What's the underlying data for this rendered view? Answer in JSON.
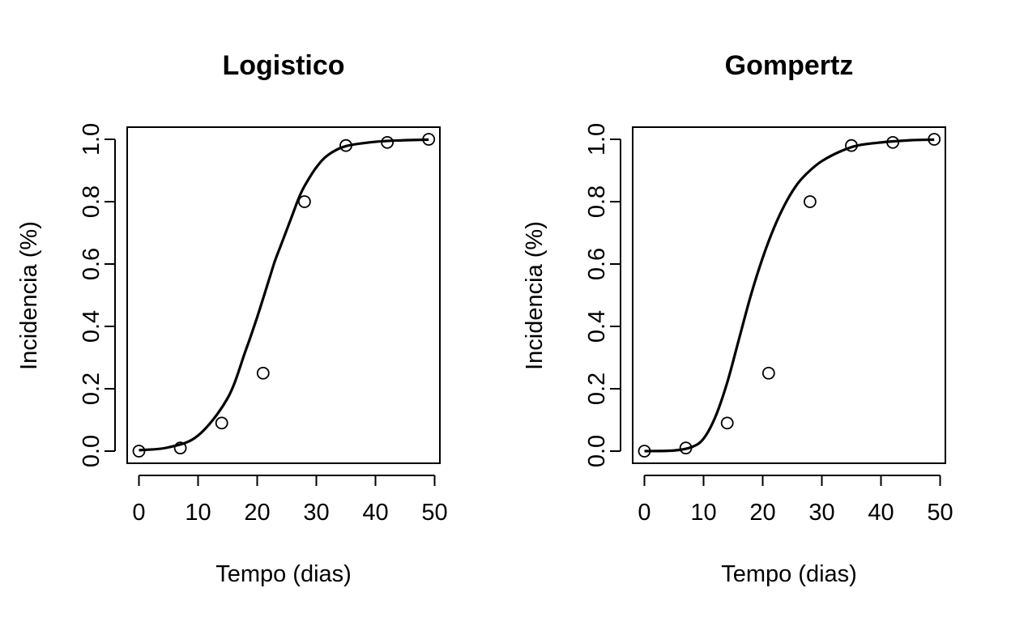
{
  "chart_data": [
    {
      "type": "scatter",
      "title": "Logistico",
      "xlabel": "Tempo (dias)",
      "ylabel": "Incidencia (%)",
      "xlim": [
        0,
        50
      ],
      "ylim": [
        0,
        1
      ],
      "x_ticks": [
        "0",
        "10",
        "20",
        "30",
        "40",
        "50"
      ],
      "y_ticks": [
        "0.0",
        "0.2",
        "0.4",
        "0.6",
        "0.8",
        "1.0"
      ],
      "grid": false,
      "legend": "none",
      "points": {
        "x": [
          0,
          7,
          14,
          21,
          28,
          35,
          42,
          49
        ],
        "y": [
          0.0,
          0.01,
          0.09,
          0.25,
          0.8,
          0.98,
          0.99,
          1.0
        ]
      },
      "fitted_curve": {
        "model": "logistic",
        "x": [
          0,
          5,
          10,
          15,
          18,
          20,
          22,
          23,
          24,
          25,
          26,
          27,
          28,
          30,
          32,
          35,
          40,
          45,
          49
        ],
        "y": [
          0.003,
          0.012,
          0.05,
          0.17,
          0.32,
          0.43,
          0.55,
          0.61,
          0.66,
          0.71,
          0.76,
          0.81,
          0.85,
          0.91,
          0.95,
          0.978,
          0.992,
          0.997,
          0.999
        ]
      }
    },
    {
      "type": "scatter",
      "title": "Gompertz",
      "xlabel": "Tempo (dias)",
      "ylabel": "Incidencia (%)",
      "xlim": [
        0,
        50
      ],
      "ylim": [
        0,
        1
      ],
      "x_ticks": [
        "0",
        "10",
        "20",
        "30",
        "40",
        "50"
      ],
      "y_ticks": [
        "0.0",
        "0.2",
        "0.4",
        "0.6",
        "0.8",
        "1.0"
      ],
      "grid": false,
      "legend": "none",
      "points": {
        "x": [
          0,
          7,
          14,
          21,
          28,
          35,
          42,
          49
        ],
        "y": [
          0.0,
          0.01,
          0.09,
          0.25,
          0.8,
          0.98,
          0.99,
          1.0
        ]
      },
      "fitted_curve": {
        "model": "gompertz",
        "x": [
          0,
          5,
          8,
          10,
          12,
          14,
          16,
          18,
          20,
          22,
          24,
          26,
          28,
          30,
          33,
          36,
          40,
          45,
          49
        ],
        "y": [
          0.0,
          0.002,
          0.013,
          0.04,
          0.11,
          0.22,
          0.36,
          0.5,
          0.62,
          0.72,
          0.8,
          0.86,
          0.9,
          0.93,
          0.96,
          0.98,
          0.99,
          0.997,
          0.999
        ]
      }
    }
  ]
}
